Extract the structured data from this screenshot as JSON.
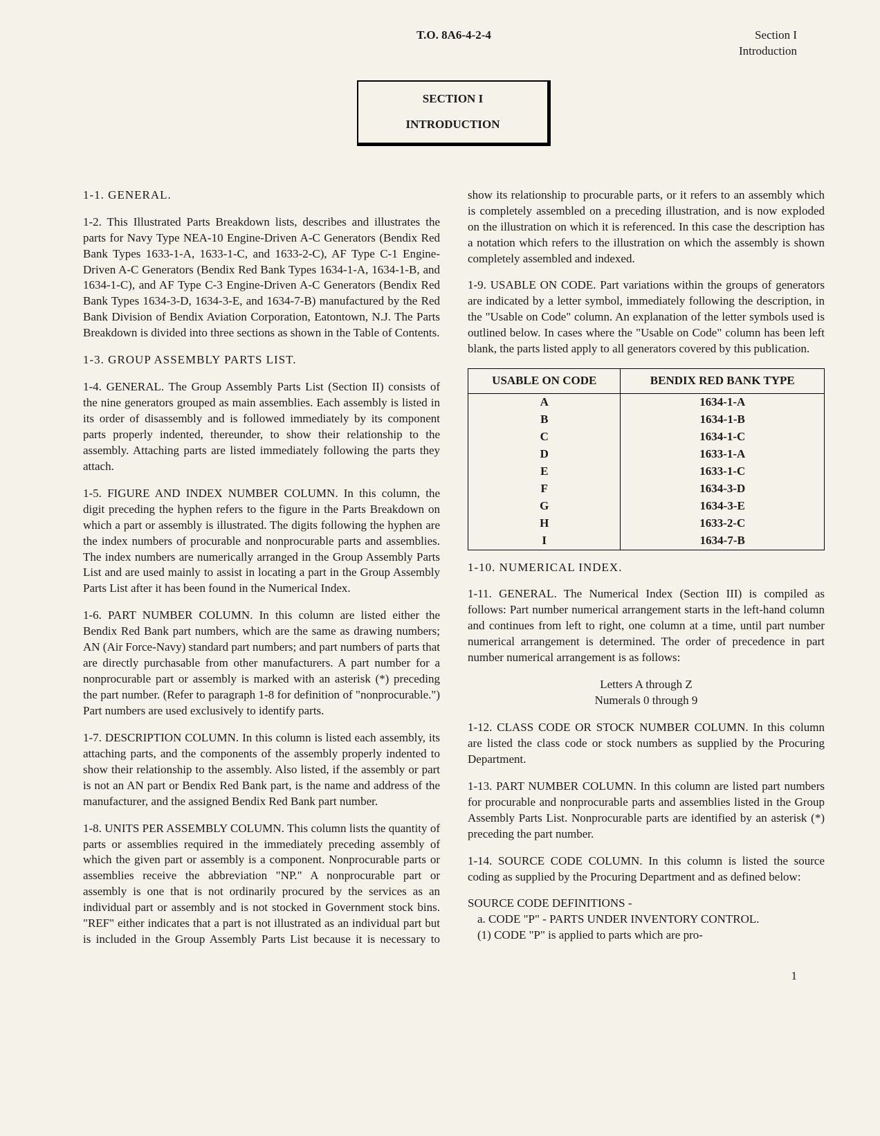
{
  "header": {
    "doc_number": "T.O. 8A6-4-2-4",
    "section_label": "Section I",
    "section_sub": "Introduction"
  },
  "section_box": {
    "line1": "SECTION I",
    "line2": "INTRODUCTION"
  },
  "paragraphs": {
    "p1_1": "1-1. GENERAL.",
    "p1_2": "1-2. This Illustrated Parts Breakdown lists, describes and illustrates the parts for Navy Type NEA-10 Engine-Driven A-C Generators (Bendix Red Bank Types 1633-1-A, 1633-1-C, and 1633-2-C), AF Type C-1 Engine-Driven A-C Generators (Bendix Red Bank Types 1634-1-A, 1634-1-B, and 1634-1-C), and AF Type C-3 Engine-Driven A-C Generators (Bendix Red Bank Types 1634-3-D, 1634-3-E, and 1634-7-B) manufactured by the Red Bank Division of Bendix Aviation Corporation, Eatontown, N.J. The Parts Breakdown is divided into three sections as shown in the Table of Contents.",
    "p1_3": "1-3. GROUP ASSEMBLY PARTS LIST.",
    "p1_4": "1-4. GENERAL. The Group Assembly Parts List (Section II) consists of the nine generators grouped as main assemblies. Each assembly is listed in its order of disassembly and is followed immediately by its component parts properly indented, thereunder, to show their relationship to the assembly. Attaching parts are listed immediately following the parts they attach.",
    "p1_5": "1-5. FIGURE AND INDEX NUMBER COLUMN. In this column, the digit preceding the hyphen refers to the figure in the Parts Breakdown on which a part or assembly is illustrated. The digits following the hyphen are the index numbers of procurable and nonprocurable parts and assemblies. The index numbers are numerically arranged in the Group Assembly Parts List and are used mainly to assist in locating a part in the Group Assembly Parts List after it has been found in the Numerical Index.",
    "p1_6": "1-6. PART NUMBER COLUMN. In this column are listed either the Bendix Red Bank part numbers, which are the same as drawing numbers; AN (Air Force-Navy) standard part numbers; and part numbers of parts that are directly purchasable from other manufacturers. A part number for a nonprocurable part or assembly is marked with an asterisk (*) preceding the part number. (Refer to paragraph 1-8 for definition of \"nonprocurable.\") Part numbers are used exclusively to identify parts.",
    "p1_7": "1-7. DESCRIPTION COLUMN. In this column is listed each assembly, its attaching parts, and the components of the assembly properly indented to show their relationship to the assembly. Also listed, if the assembly or part is not an AN part or Bendix Red Bank part, is the name and address of the manufacturer, and the assigned Bendix Red Bank part number.",
    "p1_8": "1-8. UNITS PER ASSEMBLY COLUMN. This column lists the quantity of parts or assemblies required in the immediately preceding assembly of which the given part or assembly is a component. Nonprocurable parts or assemblies receive the abbreviation \"NP.\" A nonprocurable part or assembly is one that is not ordinarily procured by the services as an individual part or assembly and is not stocked in Government stock bins. \"REF\" either indicates that a part is not illustrated as an individual part but is included in the Group Assembly Parts List because it is necessary to show its relationship to procurable parts, or it refers to an assembly which is completely assembled on a preceding illustration, and is now exploded on the illustration on which it is referenced. In this case the description has a notation which refers to the illustration on which the assembly is shown completely assembled and indexed.",
    "p1_9": "1-9. USABLE ON CODE. Part variations within the groups of generators are indicated by a letter symbol, immediately following the description, in the \"Usable on Code\" column. An explanation of the letter symbols used is outlined below. In cases where the \"Usable on Code\" column has been left blank, the parts listed apply to all generators covered by this publication.",
    "p1_10": "1-10. NUMERICAL INDEX.",
    "p1_11": "1-11. GENERAL. The Numerical Index (Section III) is compiled as follows: Part number numerical arrangement starts in the left-hand column and continues from left to right, one column at a time, until part number numerical arrangement is determined. The order of precedence in part number numerical arrangement is as follows:",
    "precedence_a": "Letters A through Z",
    "precedence_b": "Numerals 0 through 9",
    "p1_12": "1-12. CLASS CODE OR STOCK NUMBER COLUMN. In this column are listed the class code or stock numbers as supplied by the Procuring Department.",
    "p1_13": "1-13. PART NUMBER COLUMN. In this column are listed part numbers for procurable and nonprocurable parts and assemblies listed in the Group Assembly Parts List. Nonprocurable parts are identified by an asterisk (*) preceding the part number.",
    "p1_14": "1-14. SOURCE CODE COLUMN. In this column is listed the source coding as supplied by the Procuring Department and as defined below:",
    "source_defs_title": "SOURCE CODE DEFINITIONS -",
    "source_a": "a. CODE \"P\" - PARTS UNDER INVENTORY CONTROL.",
    "source_a1": "(1) CODE \"P\" is applied to parts which are pro-"
  },
  "code_table": {
    "header_left": "USABLE ON CODE",
    "header_right": "BENDIX RED BANK TYPE",
    "rows": [
      {
        "code": "A",
        "type": "1634-1-A"
      },
      {
        "code": "B",
        "type": "1634-1-B"
      },
      {
        "code": "C",
        "type": "1634-1-C"
      },
      {
        "code": "D",
        "type": "1633-1-A"
      },
      {
        "code": "E",
        "type": "1633-1-C"
      },
      {
        "code": "F",
        "type": "1634-3-D"
      },
      {
        "code": "G",
        "type": "1634-3-E"
      },
      {
        "code": "H",
        "type": "1633-2-C"
      },
      {
        "code": "I",
        "type": "1634-7-B"
      }
    ]
  },
  "page_number": "1"
}
